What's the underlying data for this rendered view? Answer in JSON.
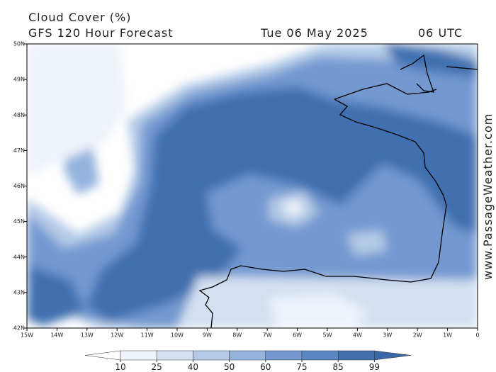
{
  "title": "Cloud Cover (%)",
  "subtitle": "GFS 120 Hour Forecast",
  "date": "Tue 06 May 2025",
  "time": "06 UTC",
  "watermark": "www.PassageWeather.com",
  "map": {
    "xlim": [
      -15,
      0
    ],
    "ylim": [
      42,
      50
    ],
    "xticks": [
      {
        "value": -15,
        "label": "15W"
      },
      {
        "value": -14,
        "label": "14W"
      },
      {
        "value": -13,
        "label": "13W"
      },
      {
        "value": -12,
        "label": "12W"
      },
      {
        "value": -11,
        "label": "11W"
      },
      {
        "value": -10,
        "label": "10W"
      },
      {
        "value": -9,
        "label": "9W"
      },
      {
        "value": -8,
        "label": "8W"
      },
      {
        "value": -7,
        "label": "7W"
      },
      {
        "value": -6,
        "label": "6W"
      },
      {
        "value": -5,
        "label": "5W"
      },
      {
        "value": -4,
        "label": "4W"
      },
      {
        "value": -3,
        "label": "3W"
      },
      {
        "value": -2,
        "label": "2W"
      },
      {
        "value": -1,
        "label": "1W"
      },
      0
    ],
    "yticks": [
      {
        "value": 42,
        "label": "42N"
      },
      {
        "value": 43,
        "label": "43N"
      },
      {
        "value": 44,
        "label": "44N"
      },
      {
        "value": 45,
        "label": "45N"
      },
      {
        "value": 46,
        "label": "46N"
      },
      {
        "value": 47,
        "label": "47N"
      },
      {
        "value": 48,
        "label": "48N"
      },
      {
        "value": 49,
        "label": "49N"
      },
      {
        "value": 50,
        "label": "50N"
      }
    ]
  },
  "colorbar": {
    "ticks": [
      10,
      25,
      40,
      50,
      60,
      75,
      85,
      99
    ],
    "colors": [
      "#ffffff",
      "#eef3fa",
      "#d3e0f1",
      "#b4cae7",
      "#93b3dd",
      "#7399d0",
      "#5a86c4",
      "#416fb0",
      "#3a67a6"
    ]
  }
}
